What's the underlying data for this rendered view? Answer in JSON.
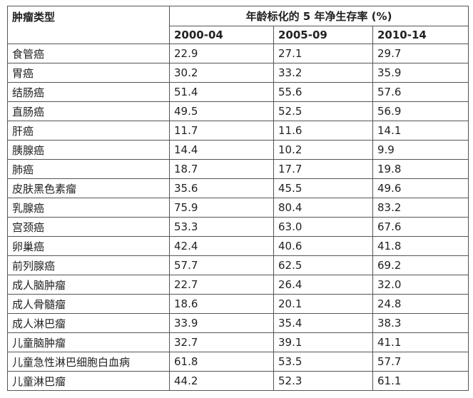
{
  "table": {
    "header": {
      "type_label": "肿瘤类型",
      "group_label": "年龄标化的 5 年净生存率 (%)",
      "periods": [
        "2000-04",
        "2005-09",
        "2010-14"
      ]
    },
    "rows": [
      [
        "食管癌",
        "22.9",
        "27.1",
        "29.7"
      ],
      [
        "胃癌",
        "30.2",
        "33.2",
        "35.9"
      ],
      [
        "结肠癌",
        "51.4",
        "55.6",
        "57.6"
      ],
      [
        "直肠癌",
        "49.5",
        "52.5",
        "56.9"
      ],
      [
        "肝癌",
        "11.7",
        "11.6",
        "14.1"
      ],
      [
        "胰腺癌",
        "14.4",
        "10.2",
        "9.9"
      ],
      [
        "肺癌",
        "18.7",
        "17.7",
        "19.8"
      ],
      [
        "皮肤黑色素瘤",
        "35.6",
        "45.5",
        "49.6"
      ],
      [
        "乳腺癌",
        "75.9",
        "80.4",
        "83.2"
      ],
      [
        "宫颈癌",
        "53.3",
        "63.0",
        "67.6"
      ],
      [
        "卵巢癌",
        "42.4",
        "40.6",
        "41.8"
      ],
      [
        "前列腺癌",
        "57.7",
        "62.5",
        "69.2"
      ],
      [
        "成人脑肿瘤",
        "22.7",
        "26.4",
        "32.0"
      ],
      [
        "成人骨髓瘤",
        "18.6",
        "20.1",
        "24.8"
      ],
      [
        "成人淋巴瘤",
        "33.9",
        "35.4",
        "38.3"
      ],
      [
        "儿童脑肿瘤",
        "32.7",
        "39.1",
        "41.1"
      ],
      [
        "儿童急性淋巴细胞白血病",
        "61.8",
        "53.5",
        "57.7"
      ],
      [
        "儿童淋巴瘤",
        "44.2",
        "52.3",
        "61.1"
      ]
    ]
  }
}
